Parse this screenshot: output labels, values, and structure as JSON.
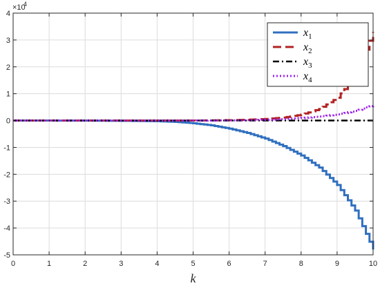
{
  "chart_data": {
    "type": "line",
    "title": "",
    "xlabel": "k",
    "ylabel": "",
    "xlim": [
      0,
      10
    ],
    "ylim": [
      -50000,
      40000
    ],
    "y_exponent_label": "×10",
    "y_exponent_power": "4",
    "x_ticks": [
      0,
      1,
      2,
      3,
      4,
      5,
      6,
      7,
      8,
      9,
      10
    ],
    "x_tick_labels": [
      "0",
      "1",
      "2",
      "3",
      "4",
      "5",
      "6",
      "7",
      "8",
      "9",
      "10"
    ],
    "y_ticks": [
      -50000,
      -40000,
      -30000,
      -20000,
      -10000,
      0,
      10000,
      20000,
      30000,
      40000
    ],
    "y_tick_labels": [
      "-5",
      "-4",
      "-3",
      "-2",
      "-1",
      "0",
      "1",
      "2",
      "3",
      "4"
    ],
    "grid": true,
    "legend_position": "top-right",
    "step_plot": true,
    "series": [
      {
        "name": "x",
        "subscript": "1",
        "color": "#2f6fbf",
        "style": "solid",
        "x": [
          0,
          1,
          2,
          3,
          4,
          4.5,
          5,
          5.5,
          6,
          6.5,
          7,
          7.5,
          8,
          8.5,
          9,
          9.5,
          10
        ],
        "y": [
          0,
          0,
          -20,
          -100,
          -250,
          -500,
          -1000,
          -1800,
          -3000,
          -4600,
          -6700,
          -9500,
          -13000,
          -17500,
          -24000,
          -33500,
          -48000
        ]
      },
      {
        "name": "x",
        "subscript": "2",
        "color": "#b22222",
        "style": "dashed",
        "x": [
          0,
          1,
          2,
          3,
          4,
          5,
          6,
          6.5,
          7,
          7.5,
          8,
          8.5,
          9,
          9.5,
          10
        ],
        "y": [
          0,
          0,
          0,
          0,
          0,
          0,
          150,
          300,
          600,
          1100,
          2200,
          4300,
          8500,
          16500,
          33000
        ]
      },
      {
        "name": "x",
        "subscript": "3",
        "color": "#000000",
        "style": "dashdot",
        "x": [
          0,
          2,
          4,
          6,
          8,
          10
        ],
        "y": [
          0,
          0,
          0,
          0,
          0,
          0
        ]
      },
      {
        "name": "x",
        "subscript": "4",
        "color": "#a020f0",
        "style": "dotted",
        "x": [
          0,
          1,
          2,
          3,
          4,
          5,
          6,
          6.5,
          7,
          7.5,
          8,
          8.5,
          9,
          9.5,
          10
        ],
        "y": [
          0,
          0,
          0,
          0,
          0,
          0,
          60,
          150,
          300,
          550,
          950,
          1500,
          2300,
          3600,
          5800
        ]
      }
    ]
  }
}
